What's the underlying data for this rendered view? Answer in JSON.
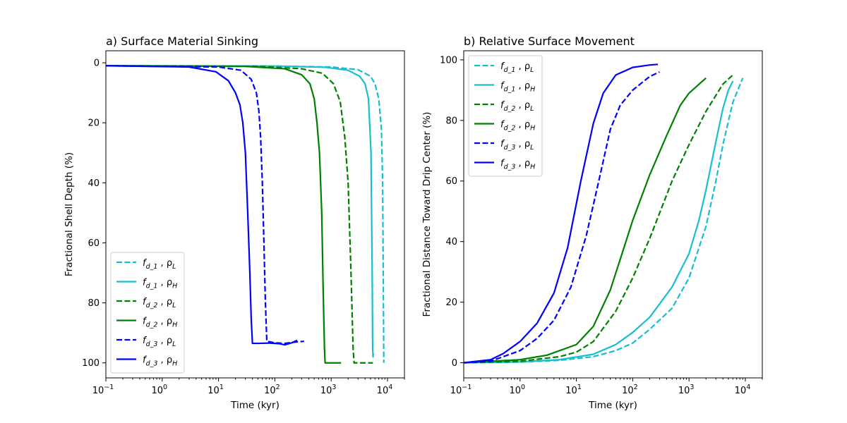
{
  "chart_data": [
    {
      "type": "line",
      "title": "a) Surface Material Sinking",
      "xlabel": "Time (kyr)",
      "ylabel": "Fractional Shell Depth (%)",
      "xscale": "log",
      "xlim": [
        0.1,
        20000
      ],
      "ylim": [
        105,
        -4
      ],
      "y_inverted": true,
      "x_ticks": [
        {
          "base": "10",
          "exp": "−1"
        },
        {
          "base": "10",
          "exp": "0"
        },
        {
          "base": "10",
          "exp": "1"
        },
        {
          "base": "10",
          "exp": "2"
        },
        {
          "base": "10",
          "exp": "3"
        },
        {
          "base": "10",
          "exp": "4"
        }
      ],
      "y_ticks": [
        "0",
        "20",
        "40",
        "60",
        "80",
        "100"
      ],
      "y_tick_values": [
        0,
        20,
        40,
        60,
        80,
        100
      ],
      "grid": false,
      "legend_placement": "lower-left",
      "series": [
        {
          "name_main": "f",
          "name_sub": "d_1",
          "name_rho": "ρ",
          "name_rho_sub": "L",
          "color": "#17becf",
          "dash": "dashed",
          "x": [
            0.1,
            100,
            1000,
            3000,
            5000,
            6000,
            7000,
            7800,
            8200,
            8400,
            8600
          ],
          "y": [
            1,
            1.1,
            1.4,
            2.3,
            4.5,
            7,
            12,
            22,
            40,
            70,
            100
          ]
        },
        {
          "name_main": "f",
          "name_sub": "d_1",
          "name_rho": "ρ",
          "name_rho_sub": "H",
          "color": "#17becf",
          "dash": "solid",
          "x": [
            0.1,
            100,
            800,
            2000,
            3200,
            4000,
            4600,
            5100,
            5350,
            5450,
            5550,
            5600
          ],
          "y": [
            1,
            1.1,
            1.5,
            2.5,
            4.5,
            7,
            12,
            30,
            70,
            95,
            98,
            97
          ]
        },
        {
          "name_main": "f",
          "name_sub": "d_2",
          "name_rho": "ρ",
          "name_rho_sub": "L",
          "color": "#008000",
          "dash": "dashed",
          "x": [
            0.1,
            50,
            300,
            700,
            1100,
            1450,
            1750,
            2000,
            2250,
            2450,
            2550,
            2700,
            5500
          ],
          "y": [
            1,
            1.2,
            2,
            3.5,
            7,
            13,
            25,
            40,
            70,
            95,
            100,
            100,
            100
          ]
        },
        {
          "name_main": "f",
          "name_sub": "d_2",
          "name_rho": "ρ",
          "name_rho_sub": "H",
          "color": "#008000",
          "dash": "solid",
          "x": [
            0.1,
            30,
            150,
            300,
            420,
            500,
            560,
            620,
            680,
            720,
            760,
            780,
            1500
          ],
          "y": [
            1,
            1.2,
            2,
            4,
            7,
            12,
            20,
            30,
            50,
            75,
            95,
            100,
            100
          ]
        },
        {
          "name_main": "f",
          "name_sub": "d_3",
          "name_rho": "ρ",
          "name_rho_sub": "L",
          "color": "#0000ff",
          "dash": "dashed",
          "x": [
            0.1,
            10,
            25,
            38,
            47,
            52,
            56,
            60,
            64,
            68,
            72,
            100,
            150,
            200,
            260,
            330
          ],
          "y": [
            1,
            1.4,
            2.5,
            5.5,
            10,
            16,
            25,
            40,
            60,
            80,
            92.8,
            93.3,
            93.5,
            93.2,
            93,
            92.8
          ]
        },
        {
          "name_main": "f",
          "name_sub": "d_3",
          "name_rho": "ρ",
          "name_rho_sub": "H",
          "color": "#0000ff",
          "dash": "solid",
          "x": [
            0.1,
            3,
            9,
            15,
            20,
            24,
            27,
            30,
            33,
            36,
            38,
            40,
            50,
            80,
            120,
            150,
            200,
            250
          ],
          "y": [
            1,
            1.4,
            3,
            6,
            10,
            14,
            20,
            30,
            50,
            70,
            85,
            93.5,
            93.5,
            93.4,
            93.6,
            94,
            93.3,
            92.5
          ]
        }
      ]
    },
    {
      "type": "line",
      "title": "b) Relative Surface Movement",
      "xlabel": "Time (kyr)",
      "ylabel": "Fractional Distance Toward Drip Center (%)",
      "xscale": "log",
      "xlim": [
        0.1,
        20000
      ],
      "ylim": [
        -5,
        103
      ],
      "x_ticks": [
        {
          "base": "10",
          "exp": "−1"
        },
        {
          "base": "10",
          "exp": "0"
        },
        {
          "base": "10",
          "exp": "1"
        },
        {
          "base": "10",
          "exp": "2"
        },
        {
          "base": "10",
          "exp": "3"
        },
        {
          "base": "10",
          "exp": "4"
        }
      ],
      "y_ticks": [
        "0",
        "20",
        "40",
        "60",
        "80",
        "100"
      ],
      "y_tick_values": [
        0,
        20,
        40,
        60,
        80,
        100
      ],
      "grid": false,
      "legend_placement": "upper-left",
      "series": [
        {
          "name_main": "f",
          "name_sub": "d_1",
          "name_rho": "ρ",
          "name_rho_sub": "L",
          "color": "#17becf",
          "dash": "dashed",
          "x": [
            0.1,
            1,
            5,
            20,
            50,
            100,
            200,
            500,
            1000,
            2000,
            3000,
            4000,
            6000,
            9000
          ],
          "y": [
            0,
            0.2,
            0.8,
            2,
            4,
            6.5,
            11,
            18,
            28,
            45,
            60,
            72,
            86,
            94
          ]
        },
        {
          "name_main": "f",
          "name_sub": "d_1",
          "name_rho": "ρ",
          "name_rho_sub": "H",
          "color": "#17becf",
          "dash": "solid",
          "x": [
            0.1,
            1,
            5,
            20,
            50,
            100,
            200,
            500,
            1000,
            1500,
            2000,
            3000,
            4000,
            5000,
            6000
          ],
          "y": [
            0,
            0.3,
            1,
            2.8,
            6,
            10,
            15,
            25,
            36,
            47,
            57,
            73,
            84,
            90,
            93
          ]
        },
        {
          "name_main": "f",
          "name_sub": "d_2",
          "name_rho": "ρ",
          "name_rho_sub": "L",
          "color": "#008000",
          "dash": "dashed",
          "x": [
            0.1,
            1,
            5,
            10,
            20,
            50,
            100,
            200,
            500,
            1000,
            2000,
            4000,
            6000
          ],
          "y": [
            0,
            0.5,
            2,
            3.5,
            7,
            17,
            28,
            41,
            60,
            72,
            83,
            92,
            95
          ]
        },
        {
          "name_main": "f",
          "name_sub": "d_2",
          "name_rho": "ρ",
          "name_rho_sub": "H",
          "color": "#008000",
          "dash": "solid",
          "x": [
            0.1,
            1,
            3,
            10,
            20,
            40,
            70,
            100,
            200,
            400,
            700,
            1000,
            2000
          ],
          "y": [
            0,
            1,
            2.5,
            6,
            12,
            24,
            38,
            47,
            62,
            75,
            85,
            89,
            94
          ]
        },
        {
          "name_main": "f",
          "name_sub": "d_3",
          "name_rho": "ρ",
          "name_rho_sub": "L",
          "color": "#0000ff",
          "dash": "dashed",
          "x": [
            0.1,
            0.3,
            1,
            2,
            4,
            8,
            15,
            25,
            40,
            60,
            100,
            200,
            300
          ],
          "y": [
            0,
            0.5,
            4,
            8,
            14,
            25,
            42,
            60,
            77,
            85,
            90,
            94.5,
            96
          ]
        },
        {
          "name_main": "f",
          "name_sub": "d_3",
          "name_rho": "ρ",
          "name_rho_sub": "H",
          "color": "#0000ff",
          "dash": "solid",
          "x": [
            0.1,
            0.3,
            0.5,
            1,
            2,
            4,
            7,
            12,
            20,
            30,
            50,
            100,
            200,
            280
          ],
          "y": [
            0,
            1,
            3,
            7,
            13,
            23,
            38,
            60,
            79,
            89,
            95,
            97.5,
            98.3,
            98.5
          ]
        }
      ]
    }
  ]
}
